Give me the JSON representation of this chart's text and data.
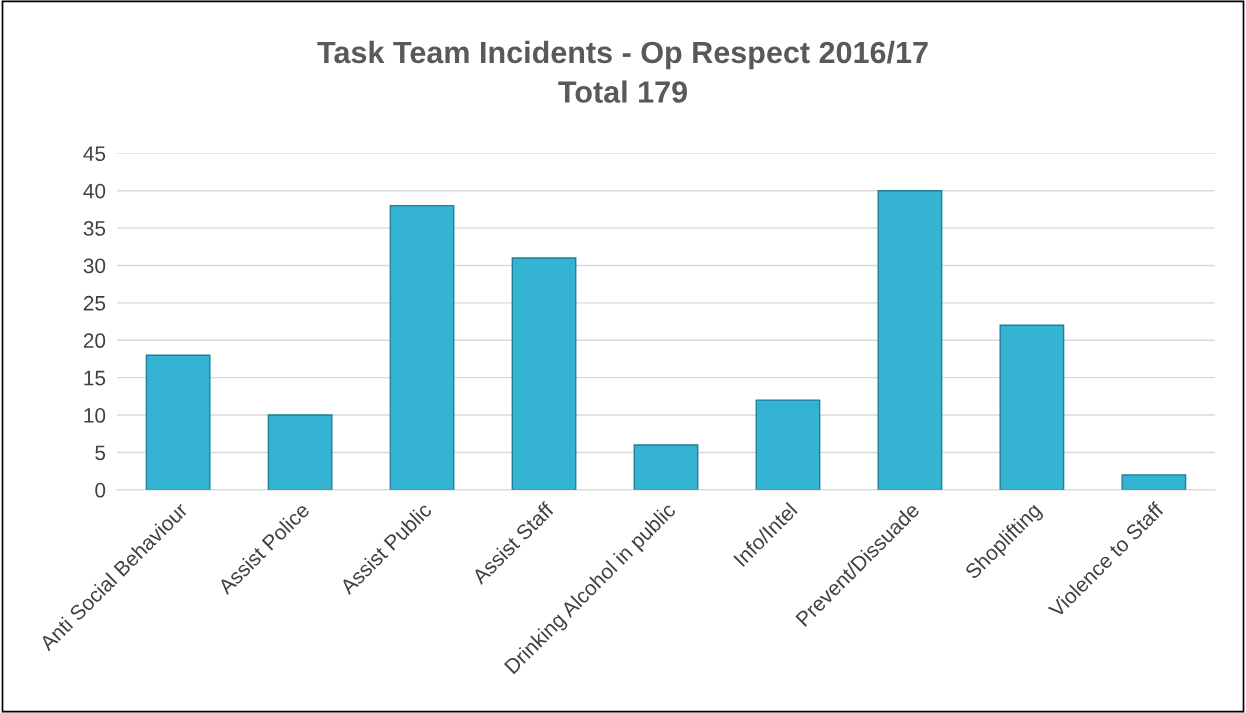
{
  "chart_data": {
    "type": "bar",
    "title": "Task Team Incidents - Op Respect 2016/17\nTotal 179",
    "categories": [
      "Anti Social Behaviour",
      "Assist Police",
      "Assist Public",
      "Assist Staff",
      "Drinking Alcohol in public",
      "Info/Intel",
      "Prevent/Dissuade",
      "Shoplifting",
      "Violence to Staff"
    ],
    "values": [
      18,
      10,
      38,
      31,
      6,
      12,
      40,
      22,
      2
    ],
    "color": "#35b3d3",
    "ylim": [
      0,
      45
    ],
    "yticks": [
      0,
      5,
      10,
      15,
      20,
      25,
      30,
      35,
      40,
      45
    ],
    "grid": "y"
  }
}
